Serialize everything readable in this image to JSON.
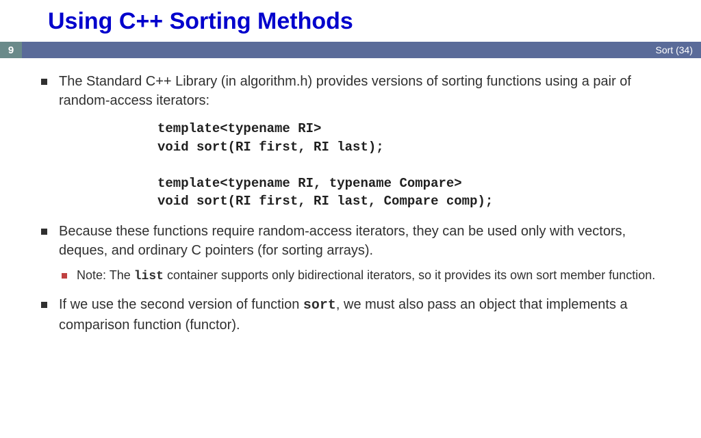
{
  "title": "Using C++ Sorting Methods",
  "slide_number": "9",
  "footer_label": "Sort (34)",
  "colors": {
    "title": "#0000cc",
    "bar_number_bg": "#6a8a8a",
    "bar_stripe_bg": "#5a6b99",
    "bar_text": "#ffffff",
    "bullet_primary": "#303030",
    "bullet_secondary": "#c04040",
    "body_text": "#303030",
    "background": "#ffffff"
  },
  "bullets": {
    "b1": "The Standard C++ Library (in algorithm.h) provides versions of sorting functions using a pair of random-access iterators:",
    "code1_l1": "template<typename RI>",
    "code1_l2": "void sort(RI first, RI last);",
    "code1_l3": "",
    "code1_l4": "template<typename RI, typename Compare>",
    "code1_l5": "void sort(RI first, RI last, Compare comp);",
    "b2": "Because these functions require random-access iterators, they can be used only with vectors, deques, and ordinary C pointers (for sorting arrays).",
    "b2_sub_pre": "Note: The ",
    "b2_sub_code": "list",
    "b2_sub_post": " container supports only bidirectional iterators, so it provides its own sort member function.",
    "b3_pre": "If we use the second version of function ",
    "b3_code": "sort",
    "b3_post": ", we must also pass an object that implements a comparison function (functor)."
  }
}
